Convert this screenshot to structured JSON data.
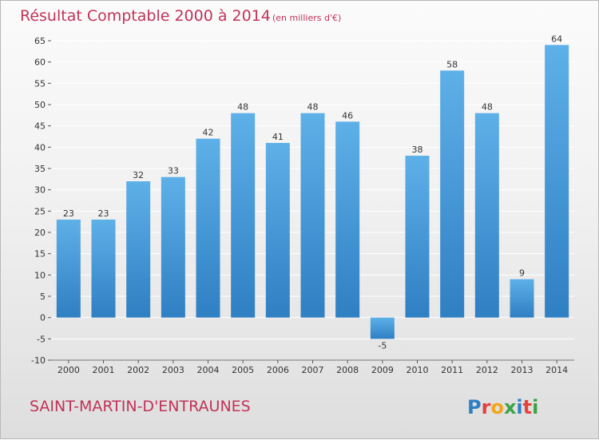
{
  "chart_data": {
    "type": "bar",
    "title": "Résultat Comptable 2000 à 2014",
    "subtitle": "(en milliers d'€)",
    "categories": [
      "2000",
      "2001",
      "2002",
      "2003",
      "2004",
      "2005",
      "2006",
      "2007",
      "2008",
      "2009",
      "2010",
      "2011",
      "2012",
      "2013",
      "2014"
    ],
    "values": [
      23,
      23,
      32,
      33,
      42,
      48,
      41,
      48,
      46,
      -5,
      38,
      58,
      48,
      9,
      64
    ],
    "ylim": [
      -10,
      65
    ],
    "yticks": [
      -10,
      -5,
      0,
      5,
      10,
      15,
      20,
      25,
      30,
      35,
      40,
      45,
      50,
      55,
      60,
      65
    ],
    "grid": true,
    "xlabel": "",
    "ylabel": "",
    "colors": {
      "bar_light": "#5eb0e8",
      "bar_dark": "#2f7fc3",
      "grid": "#ffffff",
      "title": "#c0335a"
    }
  },
  "commune": "SAINT-MARTIN-D'ENTRAUNES",
  "logo": {
    "letters": [
      "P",
      "r",
      "o",
      "x",
      "i",
      "t",
      "i"
    ],
    "colors": [
      "#2f7fc3",
      "#e5413c",
      "#f2a51a",
      "#3aa345",
      "#2f7fc3",
      "#e5413c",
      "#3aa345"
    ]
  }
}
